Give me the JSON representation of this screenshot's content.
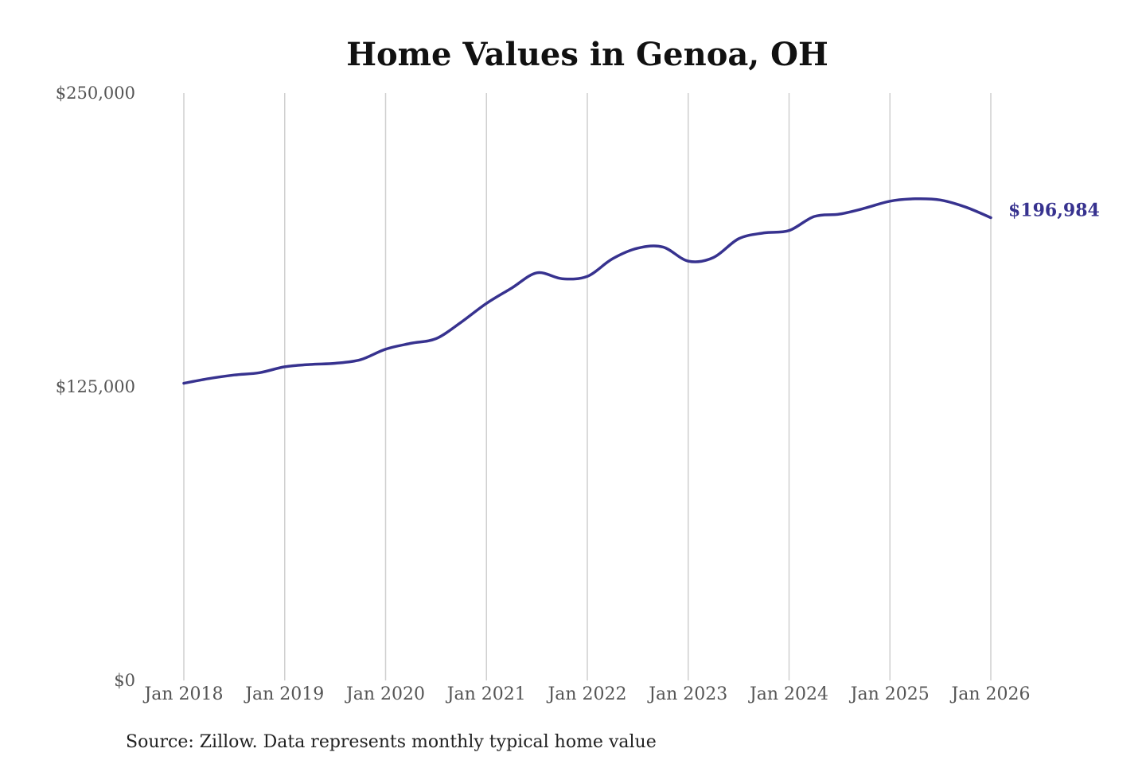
{
  "chart_data": {
    "type": "line",
    "title": "Home Values in Genoa, OH",
    "source": "Source: Zillow. Data represents monthly typical home value",
    "ylim": [
      0,
      250000
    ],
    "y_ticks": [
      {
        "value": 0,
        "label": "$0"
      },
      {
        "value": 125000,
        "label": "$125,000"
      },
      {
        "value": 250000,
        "label": "$250,000"
      }
    ],
    "x_ticks": [
      {
        "value": 2018,
        "label": "Jan 2018"
      },
      {
        "value": 2019,
        "label": "Jan 2019"
      },
      {
        "value": 2020,
        "label": "Jan 2020"
      },
      {
        "value": 2021,
        "label": "Jan 2021"
      },
      {
        "value": 2022,
        "label": "Jan 2022"
      },
      {
        "value": 2023,
        "label": "Jan 2023"
      },
      {
        "value": 2024,
        "label": "Jan 2024"
      },
      {
        "value": 2025,
        "label": "Jan 2025"
      },
      {
        "value": 2026,
        "label": "Jan 2026"
      }
    ],
    "xlim": [
      2018,
      2026
    ],
    "grid": "vertical",
    "legend": "none",
    "line_color": "#37328f",
    "series": [
      {
        "end_label": "$196,984",
        "x": [
          2018.0,
          2018.25,
          2018.5,
          2018.75,
          2019.0,
          2019.25,
          2019.5,
          2019.75,
          2020.0,
          2020.25,
          2020.5,
          2020.75,
          2021.0,
          2021.25,
          2021.5,
          2021.75,
          2022.0,
          2022.25,
          2022.5,
          2022.75,
          2023.0,
          2023.25,
          2023.5,
          2023.75,
          2024.0,
          2024.25,
          2024.5,
          2024.75,
          2025.0,
          2025.25,
          2025.5,
          2025.75,
          2026.0
        ],
        "values": [
          126500,
          128500,
          130000,
          131000,
          133500,
          134500,
          135000,
          136500,
          141000,
          143500,
          145500,
          152500,
          160500,
          167000,
          173500,
          171000,
          172000,
          179500,
          184000,
          184500,
          178500,
          180000,
          188000,
          190500,
          191500,
          197500,
          198500,
          201000,
          204000,
          205000,
          204500,
          201500,
          196984
        ]
      }
    ]
  }
}
